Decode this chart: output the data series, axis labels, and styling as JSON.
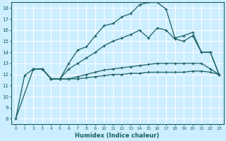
{
  "title": "",
  "xlabel": "Humidex (Indice chaleur)",
  "bg_color": "#cceeff",
  "grid_color": "#ffffff",
  "line_color": "#1a6060",
  "xlim": [
    -0.5,
    23.5
  ],
  "ylim": [
    7.5,
    18.5
  ],
  "xticks": [
    0,
    1,
    2,
    3,
    4,
    5,
    6,
    7,
    8,
    9,
    10,
    11,
    12,
    13,
    14,
    15,
    16,
    17,
    18,
    19,
    20,
    21,
    22,
    23
  ],
  "yticks": [
    8,
    9,
    10,
    11,
    12,
    13,
    14,
    15,
    16,
    17,
    18
  ],
  "line1_x": [
    0,
    1,
    2,
    3,
    4,
    5,
    6,
    7,
    8,
    9,
    10,
    11,
    12,
    13,
    14,
    15,
    16,
    17,
    18,
    19,
    20,
    21,
    22,
    23
  ],
  "line1_y": [
    8.0,
    11.9,
    12.5,
    12.5,
    11.6,
    11.6,
    13.0,
    14.2,
    14.5,
    15.5,
    16.4,
    16.6,
    17.2,
    17.5,
    18.3,
    18.5,
    18.5,
    17.9,
    15.3,
    15.5,
    15.8,
    14.0,
    14.0,
    12.0
  ],
  "line2_x": [
    2,
    3,
    4,
    5,
    6,
    7,
    8,
    9,
    10,
    11,
    12,
    13,
    14,
    15,
    16,
    17,
    18,
    19,
    20,
    21,
    22,
    23
  ],
  "line2_y": [
    12.5,
    12.5,
    11.6,
    11.6,
    12.5,
    13.0,
    13.5,
    14.0,
    14.6,
    15.0,
    15.3,
    15.6,
    16.0,
    15.3,
    16.2,
    16.0,
    15.2,
    15.0,
    15.5,
    14.0,
    14.0,
    12.0
  ],
  "line3_x": [
    0,
    2,
    3,
    4,
    5,
    6,
    7,
    8,
    9,
    10,
    11,
    12,
    13,
    14,
    15,
    16,
    17,
    18,
    19,
    20,
    21,
    22,
    23
  ],
  "line3_y": [
    8.0,
    12.5,
    12.5,
    11.6,
    11.6,
    11.6,
    11.8,
    12.0,
    12.2,
    12.4,
    12.5,
    12.6,
    12.7,
    12.8,
    12.9,
    13.0,
    13.0,
    13.0,
    13.0,
    13.0,
    13.0,
    12.5,
    12.0
  ],
  "line4_x": [
    2,
    3,
    4,
    5,
    6,
    7,
    8,
    9,
    10,
    11,
    12,
    13,
    14,
    15,
    16,
    17,
    18,
    19,
    20,
    21,
    22,
    23
  ],
  "line4_y": [
    12.5,
    12.5,
    11.6,
    11.6,
    11.6,
    11.6,
    11.7,
    11.8,
    11.9,
    12.0,
    12.0,
    12.1,
    12.1,
    12.2,
    12.2,
    12.2,
    12.2,
    12.2,
    12.3,
    12.3,
    12.2,
    12.0
  ]
}
